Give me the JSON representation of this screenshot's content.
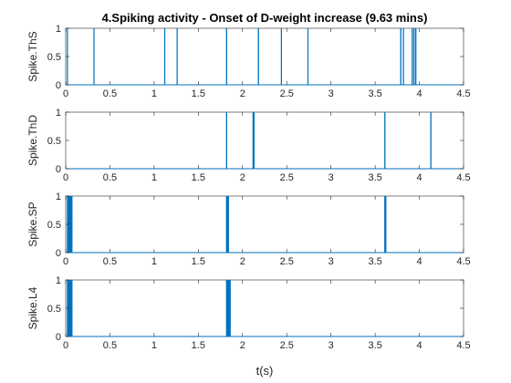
{
  "chart_data": {
    "type": "line",
    "title": "4.Spiking activity - Onset of D-weight increase (9.63 mins)",
    "xlabel": "t(s)",
    "xlim": [
      0,
      4.5
    ],
    "ylim": [
      0,
      1
    ],
    "xticks": [
      "0",
      "0.5",
      "1",
      "1.5",
      "2",
      "2.5",
      "3",
      "3.5",
      "4",
      "4.5"
    ],
    "yticks": [
      "0",
      "0.5",
      "1"
    ],
    "grid": false,
    "line_color": "#0072BD",
    "panels": [
      {
        "ylabel": "Spike.ThS",
        "spike_times": [
          0.02,
          0.32,
          1.12,
          1.26,
          1.82,
          2.18,
          2.44,
          2.74,
          3.79,
          3.82,
          3.92,
          3.94,
          3.96
        ]
      },
      {
        "ylabel": "Spike.ThD",
        "spike_times": [
          1.82,
          2.12,
          2.13,
          3.61,
          4.13
        ]
      },
      {
        "ylabel": "Spike.SP",
        "spike_times": [
          0.02,
          0.03,
          0.04,
          0.05,
          0.06,
          0.07,
          1.82,
          1.83,
          1.84,
          3.61,
          3.62
        ]
      },
      {
        "ylabel": "Spike.L4",
        "spike_times": [
          0.02,
          0.03,
          0.04,
          0.05,
          0.06,
          0.07,
          1.82,
          1.83,
          1.84,
          1.85,
          1.86
        ]
      }
    ]
  }
}
